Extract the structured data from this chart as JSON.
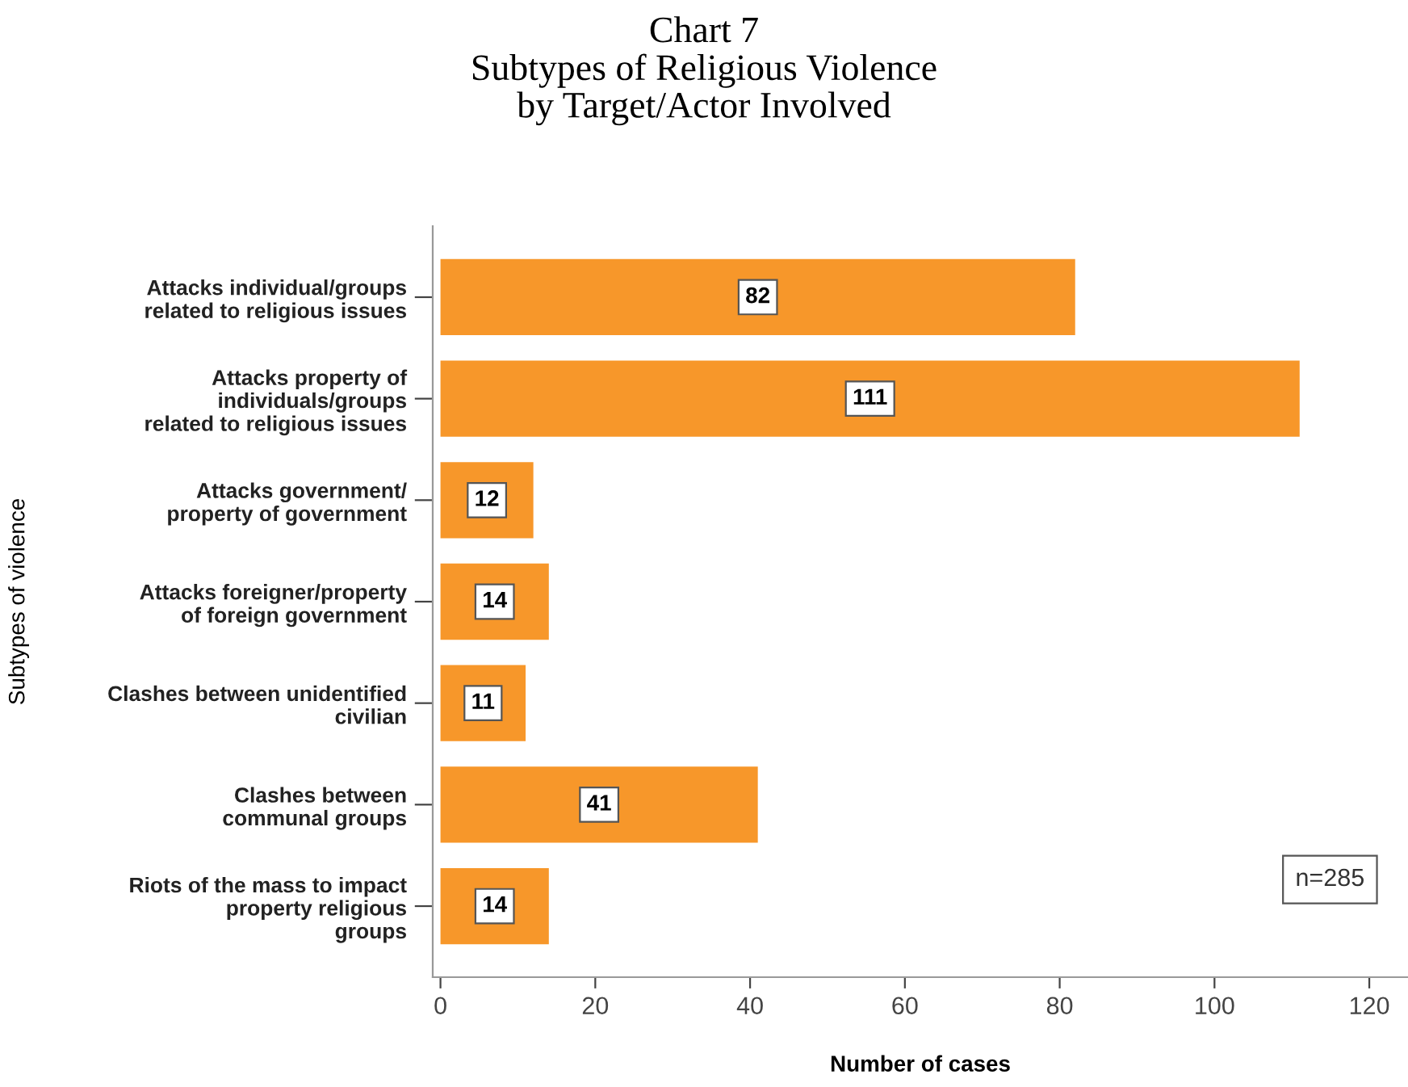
{
  "chart_data": {
    "type": "bar",
    "orientation": "horizontal",
    "title": "Chart 7\nSubtypes of Religious Violence\nby Target/Actor Involved",
    "xlabel": "Number of cases",
    "ylabel": "Subtypes of violence",
    "categories": [
      "Attacks individual/groups\nrelated to religious issues",
      "Attacks property of\nindividuals/groups\nrelated to religious issues",
      "Attacks government/\nproperty of government",
      "Attacks foreigner/property\nof foreign government",
      "Clashes between unidentified\ncivilian",
      "Clashes between\ncommunal groups",
      "Riots of the mass to impact\nproperty religious\ngroups"
    ],
    "values": [
      82,
      111,
      12,
      14,
      11,
      41,
      14
    ],
    "color": "#f7972a",
    "data_labels": true,
    "xlim": [
      -1,
      125
    ],
    "xticks": [
      0,
      20,
      40,
      60,
      80,
      100,
      120
    ],
    "grid": false,
    "legend": false,
    "annotations": [
      "n=285"
    ]
  }
}
